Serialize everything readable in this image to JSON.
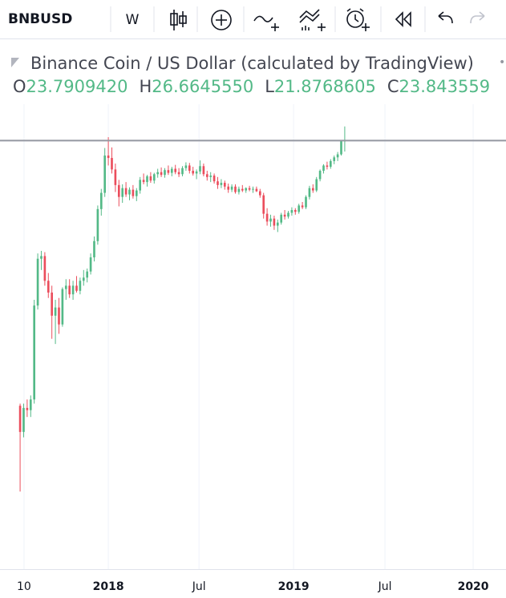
{
  "toolbar": {
    "symbol": "BNBUSD",
    "interval": "W"
  },
  "chart_data": {
    "type": "candlestick",
    "title": "Binance Coin / US Dollar (calculated by TradingView)",
    "header": {
      "o_label": "O",
      "o": "23.7909420",
      "h_label": "H",
      "h": "26.6645550",
      "l_label": "L",
      "l": "21.8768605",
      "c_label": "C",
      "c": "23.843559"
    },
    "up_color": "#53b987",
    "down_color": "#eb4d5c",
    "log": true,
    "ylim": [
      0.84,
      28
    ],
    "xlim": [
      -5.7,
      137.7
    ],
    "xticks": [
      {
        "value": 1.1,
        "label": "10"
      },
      {
        "value": 25,
        "label": "2018"
      },
      {
        "value": 50.7,
        "label": "Jul"
      },
      {
        "value": 77.5,
        "label": "2019"
      },
      {
        "value": 103.4,
        "label": "Jul"
      },
      {
        "value": 128.4,
        "label": "2020"
      }
    ],
    "open": [
      2.95,
      2.4,
      2.9,
      2.85,
      3.1,
      6.5,
      9.4,
      9.6,
      7.9,
      7.2,
      6.0,
      6.4,
      5.6,
      7.4,
      7.6,
      7.1,
      7.6,
      7.3,
      7.9,
      8.1,
      8.5,
      9.5,
      10.8,
      13.9,
      15.8,
      21.2,
      20.8,
      19.0,
      16.8,
      15.3,
      16.4,
      15.6,
      16.2,
      15.4,
      16.1,
      17.5,
      17.2,
      18.0,
      17.4,
      18.3,
      18.6,
      18.2,
      18.9,
      18.5,
      19.1,
      18.6,
      18.3,
      19.2,
      19.6,
      18.8,
      18.4,
      18.7,
      19.5,
      18.3,
      17.9,
      18.1,
      17.3,
      16.8,
      17.1,
      16.6,
      16.2,
      16.6,
      15.9,
      16.3,
      16.1,
      16.4,
      16.2,
      16.3,
      16.0,
      15.5,
      13.4,
      12.6,
      12.9,
      12.2,
      12.5,
      13.3,
      13.1,
      13.5,
      13.8,
      13.6,
      14.3,
      14.1,
      15.3,
      16.4,
      16.1,
      17.6,
      18.8,
      19.6,
      19.4,
      20.3,
      20.9,
      21.4,
      23.790942
    ],
    "high": [
      3.0,
      3.0,
      3.1,
      3.2,
      6.8,
      9.8,
      10.0,
      9.9,
      8.4,
      7.6,
      6.8,
      6.9,
      7.5,
      8.0,
      8.0,
      7.9,
      8.2,
      8.1,
      8.6,
      8.7,
      9.8,
      11.2,
      14.3,
      16.3,
      22.5,
      24.5,
      22.6,
      19.9,
      17.5,
      16.9,
      17.2,
      16.5,
      16.8,
      16.4,
      17.9,
      18.4,
      18.2,
      18.6,
      18.5,
      19.1,
      19.3,
      19.2,
      19.6,
      19.4,
      19.7,
      19.2,
      19.5,
      20.1,
      20.0,
      19.4,
      19.0,
      20.4,
      19.9,
      18.8,
      18.6,
      18.4,
      17.9,
      17.6,
      17.4,
      17.0,
      16.9,
      16.9,
      16.6,
      16.8,
      16.5,
      16.7,
      16.6,
      16.6,
      16.3,
      15.8,
      14.0,
      13.3,
      13.2,
      12.8,
      13.5,
      13.8,
      13.7,
      14.1,
      14.0,
      14.5,
      14.7,
      15.5,
      16.7,
      16.9,
      17.9,
      19.0,
      19.8,
      20.2,
      20.6,
      21.2,
      21.8,
      23.9,
      26.664555
    ],
    "low": [
      1.5,
      2.3,
      2.7,
      2.7,
      3.0,
      6.3,
      8.6,
      7.6,
      6.9,
      5.0,
      4.8,
      5.2,
      5.5,
      6.8,
      6.9,
      6.8,
      7.2,
      7.1,
      7.6,
      7.8,
      8.3,
      9.2,
      10.5,
      13.2,
      15.3,
      19.6,
      18.4,
      15.9,
      14.2,
      14.6,
      15.3,
      14.9,
      15.1,
      14.8,
      15.7,
      16.9,
      16.6,
      17.1,
      17.0,
      17.8,
      17.9,
      17.8,
      18.2,
      18.0,
      18.3,
      17.9,
      18.0,
      18.8,
      18.4,
      18.1,
      17.6,
      18.3,
      18.0,
      17.4,
      17.2,
      17.0,
      16.3,
      16.4,
      16.2,
      15.8,
      15.9,
      15.7,
      15.6,
      15.9,
      15.8,
      16.0,
      15.8,
      15.9,
      15.2,
      12.9,
      12.2,
      12.1,
      11.8,
      11.6,
      12.3,
      12.8,
      12.9,
      13.2,
      13.3,
      13.4,
      13.9,
      13.9,
      15.0,
      15.8,
      15.9,
      17.3,
      18.4,
      19.0,
      19.1,
      19.8,
      20.3,
      21.2,
      21.8768605
    ],
    "close": [
      2.4,
      2.9,
      2.85,
      3.1,
      6.5,
      9.4,
      9.6,
      7.9,
      7.2,
      6.0,
      6.4,
      5.6,
      7.4,
      7.6,
      7.1,
      7.6,
      7.3,
      7.9,
      8.1,
      8.5,
      9.5,
      10.8,
      13.9,
      15.8,
      21.2,
      20.8,
      19.0,
      16.8,
      15.3,
      16.4,
      15.6,
      16.2,
      15.4,
      16.1,
      17.5,
      17.2,
      18.0,
      17.4,
      18.3,
      18.6,
      18.2,
      18.9,
      18.5,
      19.1,
      18.6,
      18.3,
      19.2,
      19.6,
      18.8,
      18.4,
      18.7,
      19.5,
      18.3,
      17.9,
      18.1,
      17.3,
      16.8,
      17.1,
      16.6,
      16.2,
      16.6,
      15.9,
      16.3,
      16.1,
      16.4,
      16.2,
      16.3,
      16.0,
      15.5,
      13.4,
      12.6,
      12.9,
      12.2,
      12.5,
      13.3,
      13.1,
      13.5,
      13.8,
      13.6,
      14.3,
      14.1,
      15.3,
      16.4,
      16.1,
      17.6,
      18.8,
      19.6,
      19.4,
      20.3,
      20.9,
      21.4,
      23.79,
      23.843559
    ]
  }
}
